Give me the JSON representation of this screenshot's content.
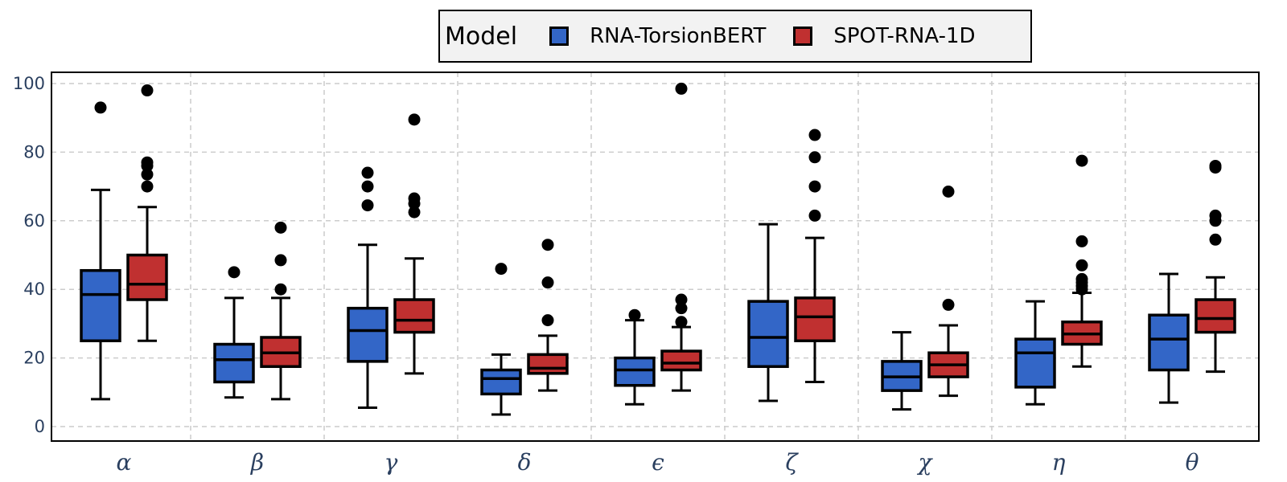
{
  "legend": {
    "title": "Model",
    "entries": [
      {
        "label": "RNA-TorsionBERT",
        "color": "#3366c7"
      },
      {
        "label": "SPOT-RNA-1D",
        "color": "#c03030"
      }
    ]
  },
  "chart_data": {
    "type": "box",
    "title": "",
    "xlabel": "",
    "ylabel": "",
    "categories": [
      "α",
      "β",
      "γ",
      "δ",
      "ϵ",
      "ζ",
      "χ",
      "η",
      "θ"
    ],
    "ylim": [
      0,
      102
    ],
    "yticks": [
      0,
      20,
      40,
      60,
      80,
      100
    ],
    "grid": true,
    "legend_position": "top-center",
    "series": [
      {
        "name": "RNA-TorsionBERT",
        "color": "#3366c7",
        "boxes": [
          {
            "min": 8,
            "q1": 25,
            "median": 38.5,
            "q3": 45.5,
            "max": 69,
            "outliers": [
              93
            ]
          },
          {
            "min": 8.5,
            "q1": 13,
            "median": 19.5,
            "q3": 24,
            "max": 37.5,
            "outliers": [
              45
            ]
          },
          {
            "min": 5.5,
            "q1": 19,
            "median": 28,
            "q3": 34.5,
            "max": 53,
            "outliers": [
              64.5,
              70,
              74
            ]
          },
          {
            "min": 3.5,
            "q1": 9.5,
            "median": 14,
            "q3": 16.5,
            "max": 21,
            "outliers": [
              46
            ]
          },
          {
            "min": 6.5,
            "q1": 12,
            "median": 16.5,
            "q3": 20,
            "max": 31,
            "outliers": [
              32.5
            ]
          },
          {
            "min": 7.5,
            "q1": 17.5,
            "median": 26,
            "q3": 36.5,
            "max": 59,
            "outliers": []
          },
          {
            "min": 5,
            "q1": 10.5,
            "median": 14.5,
            "q3": 19,
            "max": 27.5,
            "outliers": []
          },
          {
            "min": 6.5,
            "q1": 11.5,
            "median": 21.5,
            "q3": 25.5,
            "max": 36.5,
            "outliers": []
          },
          {
            "min": 7,
            "q1": 16.5,
            "median": 25.5,
            "q3": 32.5,
            "max": 44.5,
            "outliers": []
          }
        ]
      },
      {
        "name": "SPOT-RNA-1D",
        "color": "#c03030",
        "boxes": [
          {
            "min": 25,
            "q1": 37,
            "median": 41.5,
            "q3": 50,
            "max": 64,
            "outliers": [
              70,
              73.5,
              76,
              77,
              98
            ]
          },
          {
            "min": 8,
            "q1": 17.5,
            "median": 21.5,
            "q3": 26,
            "max": 37.5,
            "outliers": [
              40,
              48.5,
              58
            ]
          },
          {
            "min": 15.5,
            "q1": 27.5,
            "median": 31,
            "q3": 37,
            "max": 49,
            "outliers": [
              62.5,
              65,
              66.5,
              89.5
            ]
          },
          {
            "min": 10.5,
            "q1": 15.5,
            "median": 17,
            "q3": 21,
            "max": 26.5,
            "outliers": [
              31,
              42,
              53
            ]
          },
          {
            "min": 10.5,
            "q1": 16.5,
            "median": 18.5,
            "q3": 22,
            "max": 29,
            "outliers": [
              30.5,
              34.5,
              37,
              98.5
            ]
          },
          {
            "min": 13,
            "q1": 25,
            "median": 32,
            "q3": 37.5,
            "max": 55,
            "outliers": [
              61.5,
              70,
              78.5,
              85
            ]
          },
          {
            "min": 9,
            "q1": 14.5,
            "median": 18,
            "q3": 21.5,
            "max": 29.5,
            "outliers": [
              35.5,
              68.5
            ]
          },
          {
            "min": 17.5,
            "q1": 24,
            "median": 27,
            "q3": 30.5,
            "max": 39,
            "outliers": [
              40,
              41,
              42,
              43,
              47,
              54,
              77.5
            ]
          },
          {
            "min": 16,
            "q1": 27.5,
            "median": 31.5,
            "q3": 37,
            "max": 43.5,
            "outliers": [
              54.5,
              60,
              61.5,
              75.5,
              76
            ]
          }
        ]
      }
    ]
  }
}
